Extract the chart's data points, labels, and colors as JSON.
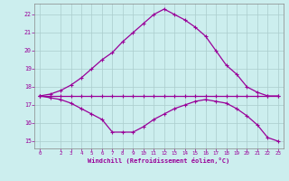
{
  "xlabel": "Windchill (Refroidissement éolien,°C)",
  "background_color": "#cceeee",
  "grid_color": "#aacccc",
  "line_color": "#990099",
  "xlim": [
    -0.5,
    23.5
  ],
  "ylim": [
    14.6,
    22.6
  ],
  "yticks": [
    15,
    16,
    17,
    18,
    19,
    20,
    21,
    22
  ],
  "xticks": [
    0,
    2,
    3,
    4,
    5,
    6,
    7,
    8,
    9,
    10,
    11,
    12,
    13,
    14,
    15,
    16,
    17,
    18,
    19,
    20,
    21,
    22,
    23
  ],
  "hours": [
    0,
    1,
    2,
    3,
    4,
    5,
    6,
    7,
    8,
    9,
    10,
    11,
    12,
    13,
    14,
    15,
    16,
    17,
    18,
    19,
    20,
    21,
    22,
    23
  ],
  "curve_big": [
    17.5,
    17.6,
    17.8,
    18.1,
    18.5,
    19.0,
    19.5,
    19.9,
    20.5,
    21.0,
    21.5,
    22.0,
    22.3,
    22.0,
    21.7,
    21.3,
    20.8,
    20.0,
    19.2,
    18.7,
    18.0,
    17.7,
    17.5,
    17.5
  ],
  "curve_low": [
    17.5,
    17.4,
    17.3,
    17.1,
    16.8,
    16.5,
    16.2,
    15.5,
    15.5,
    15.5,
    15.8,
    16.2,
    16.5,
    16.8,
    17.0,
    17.2,
    17.3,
    17.2,
    17.1,
    16.8,
    16.4,
    15.9,
    15.2,
    15.0
  ],
  "curve_flat": [
    17.5,
    17.5,
    17.5,
    17.5,
    17.5,
    17.5,
    17.5,
    17.5,
    17.5,
    17.5,
    17.5,
    17.5,
    17.5,
    17.5,
    17.5,
    17.5,
    17.5,
    17.5,
    17.5,
    17.5,
    17.5,
    17.5,
    17.5,
    17.5
  ]
}
